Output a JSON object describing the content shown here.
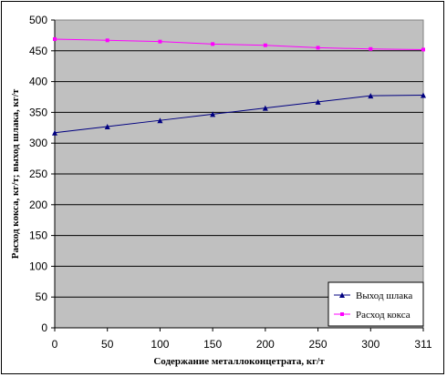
{
  "chart_data": {
    "type": "line",
    "xlabel": "Содержание металлоконцетрата, кг/т",
    "ylabel": "Расход кокса, кг/т; выход шлака, кг/т",
    "categories": [
      "0",
      "50",
      "100",
      "150",
      "200",
      "250",
      "300",
      "311"
    ],
    "ylim": [
      0,
      500
    ],
    "yticks": [
      0,
      50,
      100,
      150,
      200,
      250,
      300,
      350,
      400,
      450,
      500
    ],
    "grid": true,
    "plot_background": "#c0c0c0",
    "legend_position": "bottom-right",
    "series": [
      {
        "name": "Выход шлака",
        "color": "#000080",
        "marker": "triangle",
        "values": [
          317,
          327,
          337,
          347,
          357,
          367,
          377,
          378
        ]
      },
      {
        "name": "Расход кокса",
        "color": "#ff00ff",
        "marker": "square",
        "values": [
          469,
          467,
          465,
          461,
          459,
          455,
          453,
          452
        ]
      }
    ]
  }
}
